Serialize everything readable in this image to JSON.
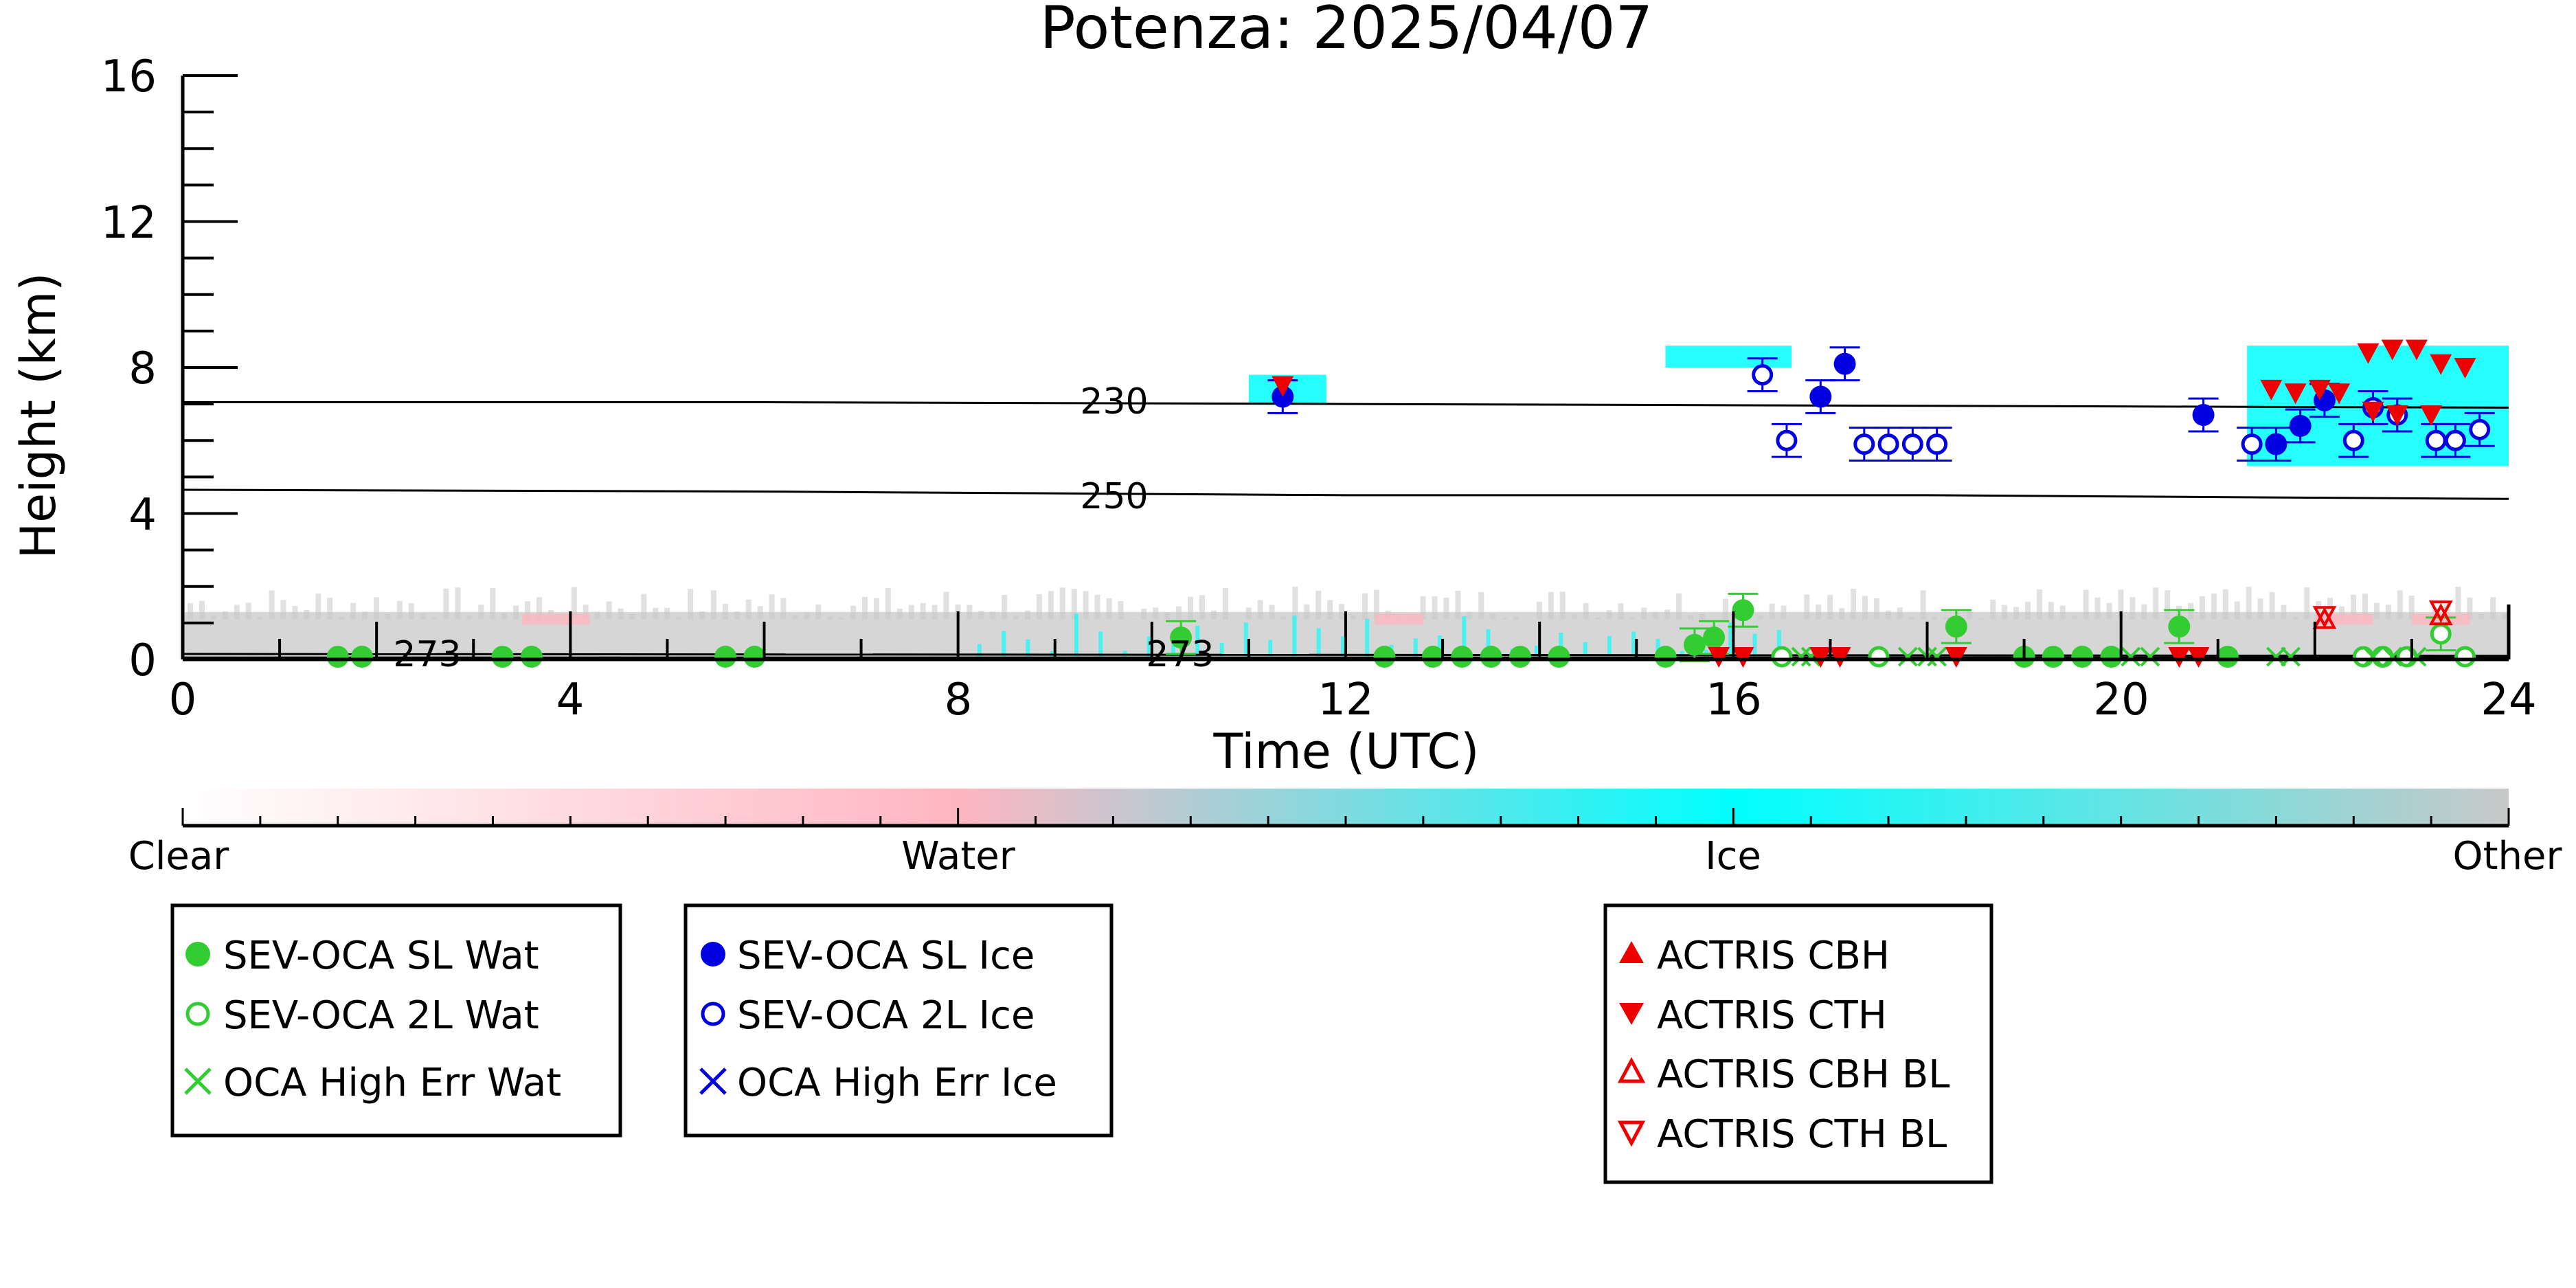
{
  "chart_data": {
    "type": "scatter",
    "title": "Potenza: 2025/04/07",
    "xlabel": "Time (UTC)",
    "ylabel": "Height (km)",
    "xlim": [
      0,
      24
    ],
    "ylim": [
      0,
      16
    ],
    "x_ticks": [
      "0",
      "4",
      "8",
      "12",
      "16",
      "20",
      "24"
    ],
    "y_ticks": [
      "0",
      "4",
      "8",
      "12",
      "16"
    ],
    "grid": false,
    "isotherms": [
      {
        "label": "230",
        "label_x": 9.9,
        "points": [
          [
            0,
            7.05
          ],
          [
            6,
            7.05
          ],
          [
            12,
            7.0
          ],
          [
            18,
            6.95
          ],
          [
            24,
            6.9
          ]
        ]
      },
      {
        "label": "250",
        "label_x": 9.9,
        "points": [
          [
            0,
            4.65
          ],
          [
            6,
            4.6
          ],
          [
            12,
            4.5
          ],
          [
            18,
            4.5
          ],
          [
            24,
            4.4
          ]
        ]
      },
      {
        "label": "273",
        "label_x": 2.3,
        "points": [
          [
            0,
            0.15
          ],
          [
            24,
            0.1
          ]
        ]
      },
      {
        "label": "273",
        "label_x": 10.3,
        "points": [
          [
            0,
            0.05
          ],
          [
            24,
            0.05
          ]
        ]
      }
    ],
    "colorbar": {
      "labels": [
        "Clear",
        "Water",
        "Ice",
        "Other"
      ],
      "colors": [
        "#ffffff",
        "#ffb6c1",
        "#00ffff",
        "#c8c8c8"
      ]
    },
    "legends": [
      {
        "entries": [
          {
            "label": "SEV-OCA SL Wat",
            "marker": "filled-circle",
            "color": "#33cc33"
          },
          {
            "label": "SEV-OCA 2L Wat",
            "marker": "open-circle",
            "color": "#33cc33"
          },
          {
            "label": "OCA High Err Wat",
            "marker": "x",
            "color": "#33cc33"
          }
        ]
      },
      {
        "entries": [
          {
            "label": "SEV-OCA SL Ice",
            "marker": "filled-circle",
            "color": "#0000e0"
          },
          {
            "label": "SEV-OCA 2L Ice",
            "marker": "open-circle",
            "color": "#0000e0"
          },
          {
            "label": "OCA High Err Ice",
            "marker": "x",
            "color": "#0000e0"
          }
        ]
      },
      {
        "entries": [
          {
            "label": "ACTRIS CBH",
            "marker": "triangle-up",
            "color": "#ee0000"
          },
          {
            "label": "ACTRIS CTH",
            "marker": "triangle-down",
            "color": "#ee0000"
          },
          {
            "label": "ACTRIS CBH BL",
            "marker": "open-triangle-up",
            "color": "#ee0000"
          },
          {
            "label": "ACTRIS CTH BL",
            "marker": "open-triangle-down",
            "color": "#ee0000"
          }
        ]
      }
    ],
    "series": [
      {
        "name": "SEV-OCA SL Wat",
        "points": [
          [
            1.6,
            0
          ],
          [
            1.85,
            0
          ],
          [
            3.3,
            0
          ],
          [
            3.6,
            0
          ],
          [
            5.6,
            0
          ],
          [
            5.9,
            0
          ],
          [
            10.3,
            0.6
          ],
          [
            12.4,
            0
          ],
          [
            12.9,
            0
          ],
          [
            13.2,
            0
          ],
          [
            13.5,
            0
          ],
          [
            13.8,
            0
          ],
          [
            14.2,
            0
          ],
          [
            15.3,
            0
          ],
          [
            15.6,
            0.4
          ],
          [
            15.8,
            0.6
          ],
          [
            16.1,
            1.35
          ],
          [
            18.3,
            0.9
          ],
          [
            19.0,
            0
          ],
          [
            19.3,
            0
          ],
          [
            19.6,
            0
          ],
          [
            19.9,
            0
          ],
          [
            20.6,
            0.9
          ],
          [
            21.1,
            0
          ],
          [
            22.7,
            0
          ]
        ]
      },
      {
        "name": "SEV-OCA 2L Wat",
        "points": [
          [
            16.5,
            0
          ],
          [
            17.5,
            0
          ],
          [
            22.5,
            0
          ],
          [
            22.7,
            0
          ],
          [
            22.95,
            0
          ],
          [
            23.3,
            0.7
          ],
          [
            23.55,
            0
          ]
        ]
      },
      {
        "name": "OCA High Err Wat",
        "points": [
          [
            16.7,
            0
          ],
          [
            16.8,
            0
          ],
          [
            17.8,
            0
          ],
          [
            18.0,
            0
          ],
          [
            18.1,
            0
          ],
          [
            20.1,
            0
          ],
          [
            20.3,
            0
          ],
          [
            21.6,
            0
          ],
          [
            21.75,
            0
          ],
          [
            22.6,
            0
          ],
          [
            22.8,
            0
          ],
          [
            23.05,
            0
          ]
        ]
      },
      {
        "name": "SEV-OCA SL Ice",
        "points": [
          [
            11.35,
            7.2
          ],
          [
            16.9,
            7.2
          ],
          [
            17.15,
            8.1
          ],
          [
            20.85,
            6.7
          ],
          [
            21.6,
            5.9
          ],
          [
            21.85,
            6.4
          ],
          [
            22.1,
            7.1
          ]
        ]
      },
      {
        "name": "SEV-OCA 2L Ice",
        "points": [
          [
            16.3,
            7.8
          ],
          [
            16.55,
            6.0
          ],
          [
            17.35,
            5.9
          ],
          [
            17.6,
            5.9
          ],
          [
            17.85,
            5.9
          ],
          [
            18.1,
            5.9
          ],
          [
            21.35,
            5.9
          ],
          [
            22.4,
            6.0
          ],
          [
            22.6,
            6.9
          ],
          [
            22.85,
            6.7
          ],
          [
            23.25,
            6.0
          ],
          [
            23.45,
            6.0
          ],
          [
            23.7,
            6.3
          ]
        ]
      },
      {
        "name": "ACTRIS CTH",
        "points": [
          [
            11.35,
            7.5
          ],
          [
            21.55,
            7.4
          ],
          [
            21.8,
            7.3
          ],
          [
            22.05,
            7.4
          ],
          [
            22.25,
            7.3
          ],
          [
            22.55,
            8.4
          ],
          [
            22.8,
            8.5
          ],
          [
            23.05,
            8.5
          ],
          [
            23.3,
            8.1
          ],
          [
            23.55,
            8.0
          ],
          [
            22.6,
            6.8
          ],
          [
            22.85,
            6.7
          ],
          [
            23.2,
            6.7
          ],
          [
            15.85,
            0
          ],
          [
            16.1,
            0
          ],
          [
            16.9,
            0
          ],
          [
            17.1,
            0
          ],
          [
            18.3,
            0
          ],
          [
            20.6,
            0
          ],
          [
            20.8,
            0
          ]
        ]
      },
      {
        "name": "ACTRIS CBH BL",
        "points": [
          [
            22.1,
            1.1
          ],
          [
            23.3,
            1.2
          ]
        ]
      },
      {
        "name": "ACTRIS CTH BL",
        "points": [
          [
            22.1,
            1.2
          ],
          [
            23.3,
            1.35
          ]
        ]
      }
    ]
  }
}
